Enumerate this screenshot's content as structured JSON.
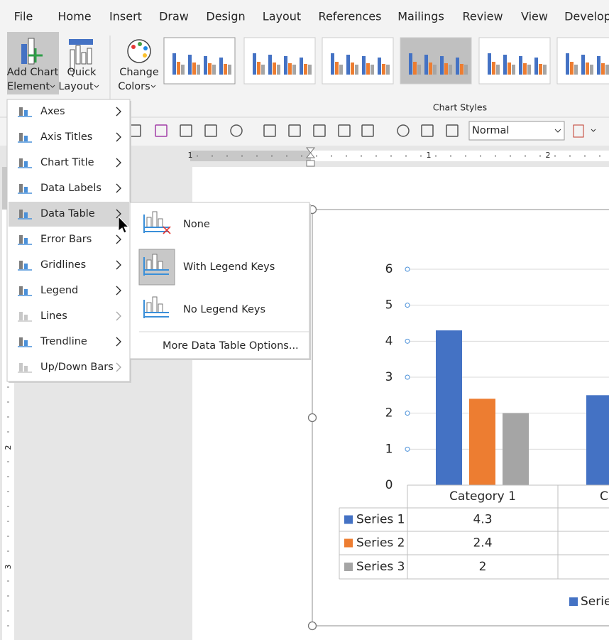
{
  "ribbon": {
    "tabs": [
      "File",
      "Home",
      "Insert",
      "Draw",
      "Design",
      "Layout",
      "References",
      "Mailings",
      "Review",
      "View",
      "Develop"
    ],
    "add_chart_element": [
      "Add Chart",
      "Element"
    ],
    "quick_layout": [
      "Quick",
      "Layout"
    ],
    "change_colors": [
      "Change",
      "Colors"
    ],
    "group_label": "Chart Styles"
  },
  "toolbar": {
    "style": "Normal"
  },
  "ruler": {
    "horizontal": [
      1,
      1,
      2
    ],
    "vertical": [
      2,
      3
    ]
  },
  "menu": {
    "highlighted": 4,
    "items": [
      {
        "label": "Axes",
        "enabled": true
      },
      {
        "label": "Axis Titles",
        "enabled": true
      },
      {
        "label": "Chart Title",
        "enabled": true
      },
      {
        "label": "Data Labels",
        "enabled": true
      },
      {
        "label": "Data Table",
        "enabled": true
      },
      {
        "label": "Error Bars",
        "enabled": true
      },
      {
        "label": "Gridlines",
        "enabled": true
      },
      {
        "label": "Legend",
        "enabled": true
      },
      {
        "label": "Lines",
        "enabled": false
      },
      {
        "label": "Trendline",
        "enabled": true
      },
      {
        "label": "Up/Down Bars",
        "enabled": false
      }
    ]
  },
  "submenu": {
    "items": [
      "None",
      "With Legend Keys",
      "No Legend Keys"
    ],
    "selected": 1,
    "more": "More Data Table Options..."
  },
  "chart": {
    "type": "bar",
    "categories": [
      "Category 1",
      "Ca"
    ],
    "series": [
      {
        "name": "Series 1",
        "color": "#4472c4",
        "values": [
          4.3,
          2.5
        ]
      },
      {
        "name": "Series 2",
        "color": "#ed7d31",
        "values": [
          2.4,
          null
        ]
      },
      {
        "name": "Series 3",
        "color": "#a5a5a5",
        "values": [
          2,
          null
        ]
      }
    ],
    "ylim": [
      0,
      6
    ],
    "yticks": [
      0,
      1,
      2,
      3,
      4,
      5,
      6
    ],
    "legend_visible": "Serie"
  }
}
